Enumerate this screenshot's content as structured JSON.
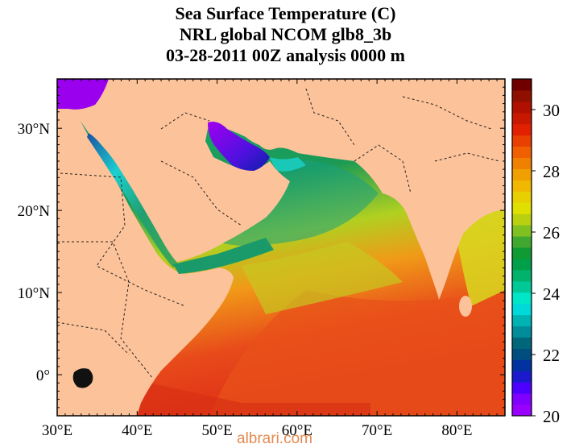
{
  "titles": {
    "line1": "Sea Surface Temperature (C)",
    "line2": "NRL global NCOM glb8_3b",
    "line3": "03-28-2011 00Z analysis   0000 m"
  },
  "axes": {
    "lon_labels": [
      "30°E",
      "40°E",
      "50°E",
      "60°E",
      "70°E",
      "80°E"
    ],
    "lon_values": [
      30,
      40,
      50,
      60,
      70,
      80
    ],
    "lat_labels": [
      "30°N",
      "20°N",
      "10°N",
      "0°"
    ],
    "lat_values": [
      30,
      20,
      10,
      0
    ],
    "lon_range": [
      30,
      86
    ],
    "lat_range": [
      -5,
      36
    ]
  },
  "colorbar": {
    "min": 20,
    "max": 31,
    "labels": [
      "30",
      "28",
      "26",
      "24",
      "22",
      "20"
    ],
    "label_values": [
      30,
      28,
      26,
      24,
      22,
      20
    ],
    "colors": [
      "#9900ff",
      "#8000ff",
      "#4d00ff",
      "#1a1acc",
      "#0033a0",
      "#004d80",
      "#00667a",
      "#008c99",
      "#00b3b3",
      "#00d9d9",
      "#00e6c8",
      "#00c896",
      "#00b26b",
      "#00a04b",
      "#109a33",
      "#40a830",
      "#80c020",
      "#b8d010",
      "#e0e000",
      "#e8d000",
      "#f0b800",
      "#f0a000",
      "#f08000",
      "#f06000",
      "#e84000",
      "#e02000",
      "#c81800",
      "#b01000",
      "#901000",
      "#700000"
    ]
  },
  "map_colors": {
    "land": "#fcc29a",
    "purple": "#9a00ee",
    "deep_blue": "#0a20a8",
    "cyan": "#1ad0d0",
    "teal": "#1ea88a",
    "green": "#1a9a55",
    "yellow": "#d6d820",
    "orange": "#f08c18",
    "red": "#e8421a"
  },
  "watermark": "albrari.com"
}
